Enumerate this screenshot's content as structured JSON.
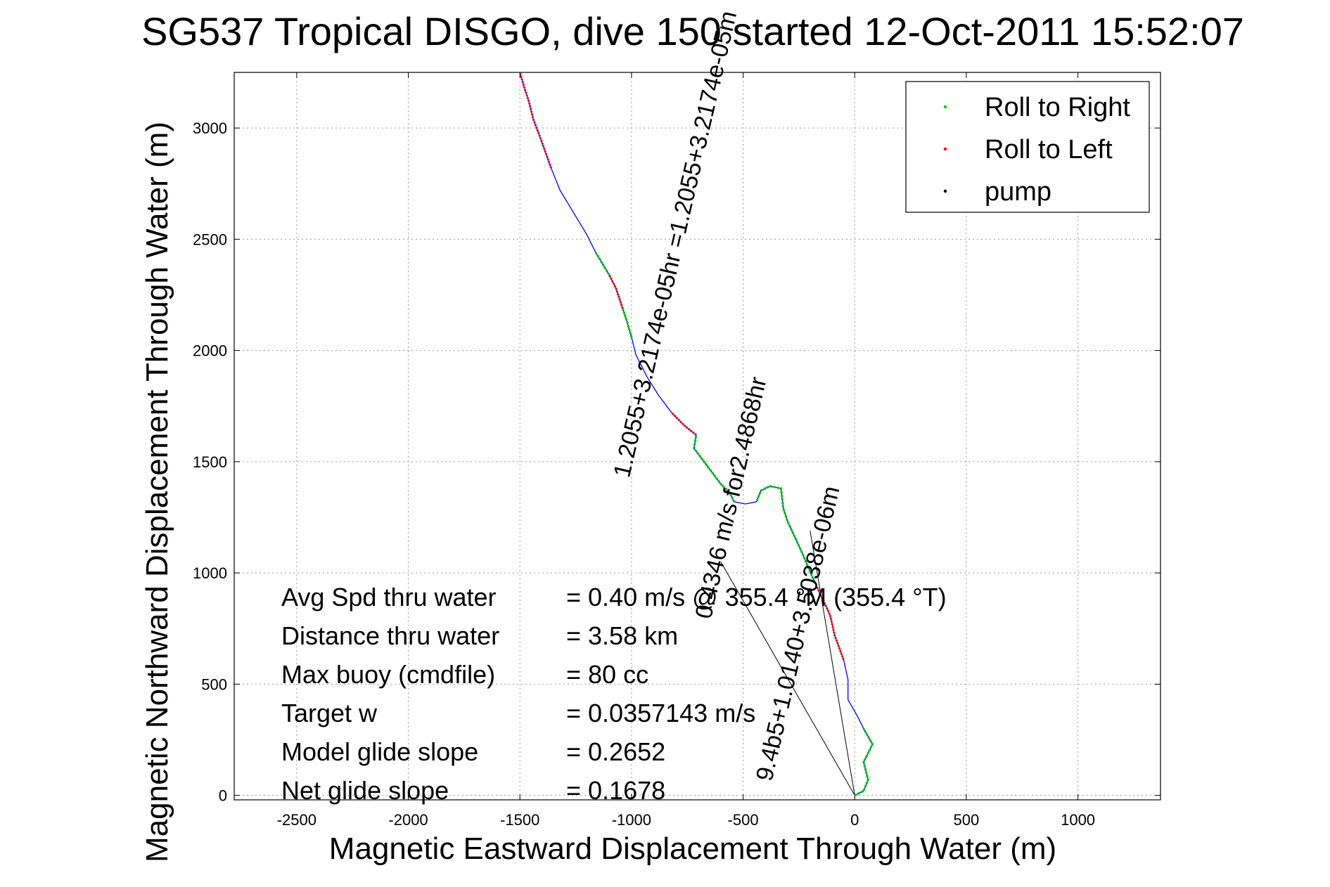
{
  "chart_data": {
    "type": "line",
    "title": "SG537 Tropical DISGO, dive 150 started 12-Oct-2011 15:52:07",
    "xlabel": "Magnetic Eastward Displacement Through Water (m)",
    "ylabel": "Magnetic Northward Displacement Through Water (m)",
    "xlim": [
      -2780,
      1370
    ],
    "ylim": [
      -20,
      3250
    ],
    "x_ticks": [
      -2500,
      -2000,
      -1500,
      -1000,
      -500,
      0,
      500,
      1000
    ],
    "y_ticks": [
      0,
      500,
      1000,
      1500,
      2000,
      2500,
      3000
    ],
    "grid": true,
    "legend_position": "top-right",
    "legend": [
      {
        "label": "Roll to Right",
        "color": "#00cc00"
      },
      {
        "label": "Roll to Left",
        "color": "#ff0000"
      },
      {
        "label": "pump",
        "color": "#000000"
      }
    ],
    "track_color": "#0000ff",
    "series": [
      {
        "name": "track",
        "points": [
          [
            0,
            0
          ],
          [
            40,
            20
          ],
          [
            60,
            70
          ],
          [
            40,
            150
          ],
          [
            80,
            230
          ],
          [
            40,
            300
          ],
          [
            10,
            360
          ],
          [
            -30,
            430
          ],
          [
            -30,
            520
          ],
          [
            -50,
            610
          ],
          [
            -90,
            720
          ],
          [
            -110,
            810
          ],
          [
            -180,
            960
          ],
          [
            -240,
            1100
          ],
          [
            -300,
            1230
          ],
          [
            -320,
            1290
          ],
          [
            -330,
            1380
          ],
          [
            -380,
            1390
          ],
          [
            -420,
            1370
          ],
          [
            -440,
            1320
          ],
          [
            -490,
            1310
          ],
          [
            -540,
            1320
          ],
          [
            -560,
            1360
          ],
          [
            -600,
            1400
          ],
          [
            -660,
            1480
          ],
          [
            -720,
            1560
          ],
          [
            -710,
            1620
          ],
          [
            -760,
            1660
          ],
          [
            -820,
            1720
          ],
          [
            -880,
            1800
          ],
          [
            -930,
            1880
          ],
          [
            -980,
            1980
          ],
          [
            -1000,
            2060
          ],
          [
            -1020,
            2130
          ],
          [
            -1040,
            2190
          ],
          [
            -1070,
            2280
          ],
          [
            -1100,
            2340
          ],
          [
            -1130,
            2390
          ],
          [
            -1160,
            2440
          ],
          [
            -1200,
            2520
          ],
          [
            -1260,
            2620
          ],
          [
            -1320,
            2720
          ],
          [
            -1360,
            2820
          ],
          [
            -1410,
            2960
          ],
          [
            -1440,
            3040
          ],
          [
            -1460,
            3120
          ],
          [
            -1480,
            3180
          ],
          [
            -1500,
            3250
          ]
        ]
      }
    ],
    "roll_right_segments": [
      [
        0,
        5
      ],
      [
        12,
        19
      ],
      [
        21,
        26
      ],
      [
        32,
        34
      ],
      [
        36,
        38
      ]
    ],
    "roll_left_segments": [
      [
        9,
        12
      ],
      [
        26,
        28
      ],
      [
        34,
        36
      ],
      [
        42,
        48
      ]
    ],
    "fit_lines": [
      {
        "from": [
          0,
          0
        ],
        "to": [
          -600,
          1050
        ]
      },
      {
        "from": [
          0,
          0
        ],
        "to": [
          -200,
          1190
        ]
      }
    ],
    "annotations": [
      {
        "text": "1.2055+3.2174e-05hr =1.2055+3.2174e-05m",
        "x": -770,
        "y": 2470,
        "rotation": -77
      },
      {
        "text": "0.4346 m/s for2.4868hr",
        "x": -520,
        "y": 1330,
        "rotation": -77
      },
      {
        "text": "9.4b5+1.0140+3.5038e-06m",
        "x": -220,
        "y": 720,
        "rotation": -77
      }
    ],
    "stats": [
      {
        "label": "Avg Spd thru water",
        "value": "=  0.40 m/s @ 355.4 °M (355.4 °T)"
      },
      {
        "label": "Distance thru water",
        "value": "=  3.58 km"
      },
      {
        "label": "Max buoy (cmdfile)",
        "value": "= 80 cc"
      },
      {
        "label": "Target w",
        "value": "= 0.0357143 m/s"
      },
      {
        "label": "Model glide slope",
        "value": "= 0.2652"
      },
      {
        "label": "Net glide slope",
        "value": "= 0.1678"
      }
    ]
  }
}
